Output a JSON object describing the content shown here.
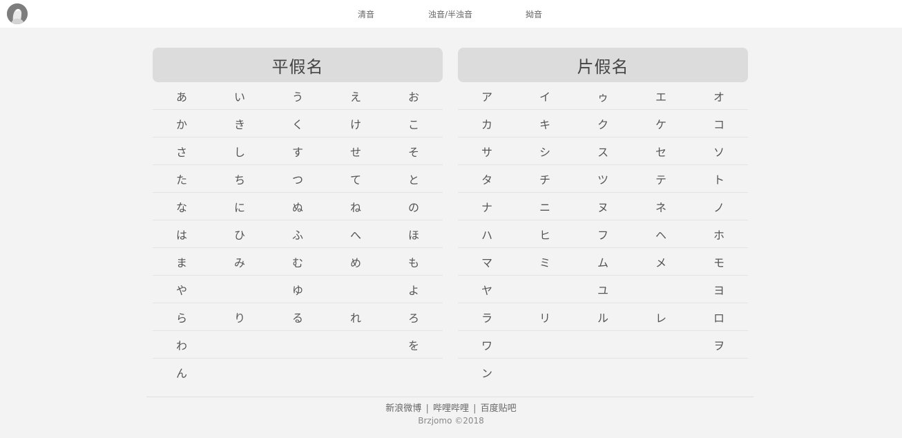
{
  "nav": {
    "items": [
      "清音",
      "浊音/半浊音",
      "拗音"
    ]
  },
  "hiragana": {
    "title": "平假名",
    "rows": [
      [
        "あ",
        "い",
        "う",
        "え",
        "お"
      ],
      [
        "か",
        "き",
        "く",
        "け",
        "こ"
      ],
      [
        "さ",
        "し",
        "す",
        "せ",
        "そ"
      ],
      [
        "た",
        "ち",
        "つ",
        "て",
        "と"
      ],
      [
        "な",
        "に",
        "ぬ",
        "ね",
        "の"
      ],
      [
        "は",
        "ひ",
        "ふ",
        "へ",
        "ほ"
      ],
      [
        "ま",
        "み",
        "む",
        "め",
        "も"
      ],
      [
        "や",
        "",
        "ゆ",
        "",
        "よ"
      ],
      [
        "ら",
        "り",
        "る",
        "れ",
        "ろ"
      ],
      [
        "わ",
        "",
        "",
        "",
        "を"
      ],
      [
        "ん",
        "",
        "",
        "",
        ""
      ]
    ]
  },
  "katakana": {
    "title": "片假名",
    "rows": [
      [
        "ア",
        "イ",
        "ゥ",
        "エ",
        "オ"
      ],
      [
        "カ",
        "キ",
        "ク",
        "ケ",
        "コ"
      ],
      [
        "サ",
        "シ",
        "ス",
        "セ",
        "ソ"
      ],
      [
        "タ",
        "チ",
        "ツ",
        "テ",
        "ト"
      ],
      [
        "ナ",
        "ニ",
        "ヌ",
        "ネ",
        "ノ"
      ],
      [
        "ハ",
        "ヒ",
        "フ",
        "ヘ",
        "ホ"
      ],
      [
        "マ",
        "ミ",
        "ム",
        "メ",
        "モ"
      ],
      [
        "ヤ",
        "",
        "ユ",
        "",
        "ヨ"
      ],
      [
        "ラ",
        "リ",
        "ル",
        "レ",
        "ロ"
      ],
      [
        "ワ",
        "",
        "",
        "",
        "ヲ"
      ],
      [
        "ン",
        "",
        "",
        "",
        ""
      ]
    ]
  },
  "footer": {
    "links": [
      "新浪微博",
      "哔哩哔哩",
      "百度贴吧"
    ],
    "separator": "|",
    "copyright": "Brzjomo ©2018"
  }
}
